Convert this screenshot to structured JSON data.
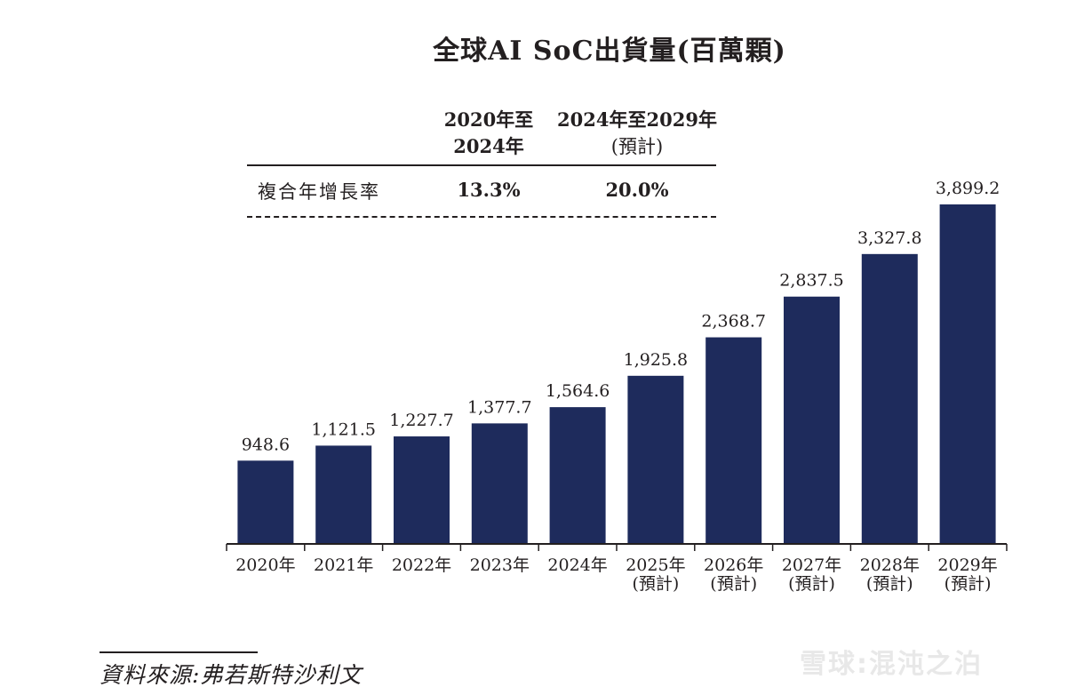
{
  "chart_data": {
    "type": "bar",
    "title": "全球AI SoC出貨量(百萬顆)",
    "categories": [
      "2020年",
      "2021年",
      "2022年",
      "2023年",
      "2024年",
      "2025年",
      "2026年",
      "2027年",
      "2028年",
      "2029年"
    ],
    "category_sublabels": [
      "",
      "",
      "",
      "",
      "",
      "(預計)",
      "(預計)",
      "(預計)",
      "(預計)",
      "(預計)"
    ],
    "values": [
      948.6,
      1121.5,
      1227.7,
      1377.7,
      1564.6,
      1925.8,
      2368.7,
      2837.5,
      3327.8,
      3899.2
    ],
    "value_labels": [
      "948.6",
      "1,121.5",
      "1,227.7",
      "1,377.7",
      "1,564.6",
      "1,925.8",
      "2,368.7",
      "2,837.5",
      "3,327.8",
      "3,899.2"
    ],
    "ylim": [
      0,
      3899.2
    ],
    "bar_color": "#1e2b5c",
    "grid": false
  },
  "cagr_table": {
    "header_1_line1": "2020年至",
    "header_1_line2": "2024年",
    "header_2_line1": "2024年至2029年",
    "header_2_line2": "(預計)",
    "row_label": "複合年增長率",
    "value_1": "13.3%",
    "value_2": "20.0%"
  },
  "source": "資料來源:弗若斯特沙利文",
  "watermark": "雪球:混沌之泊"
}
